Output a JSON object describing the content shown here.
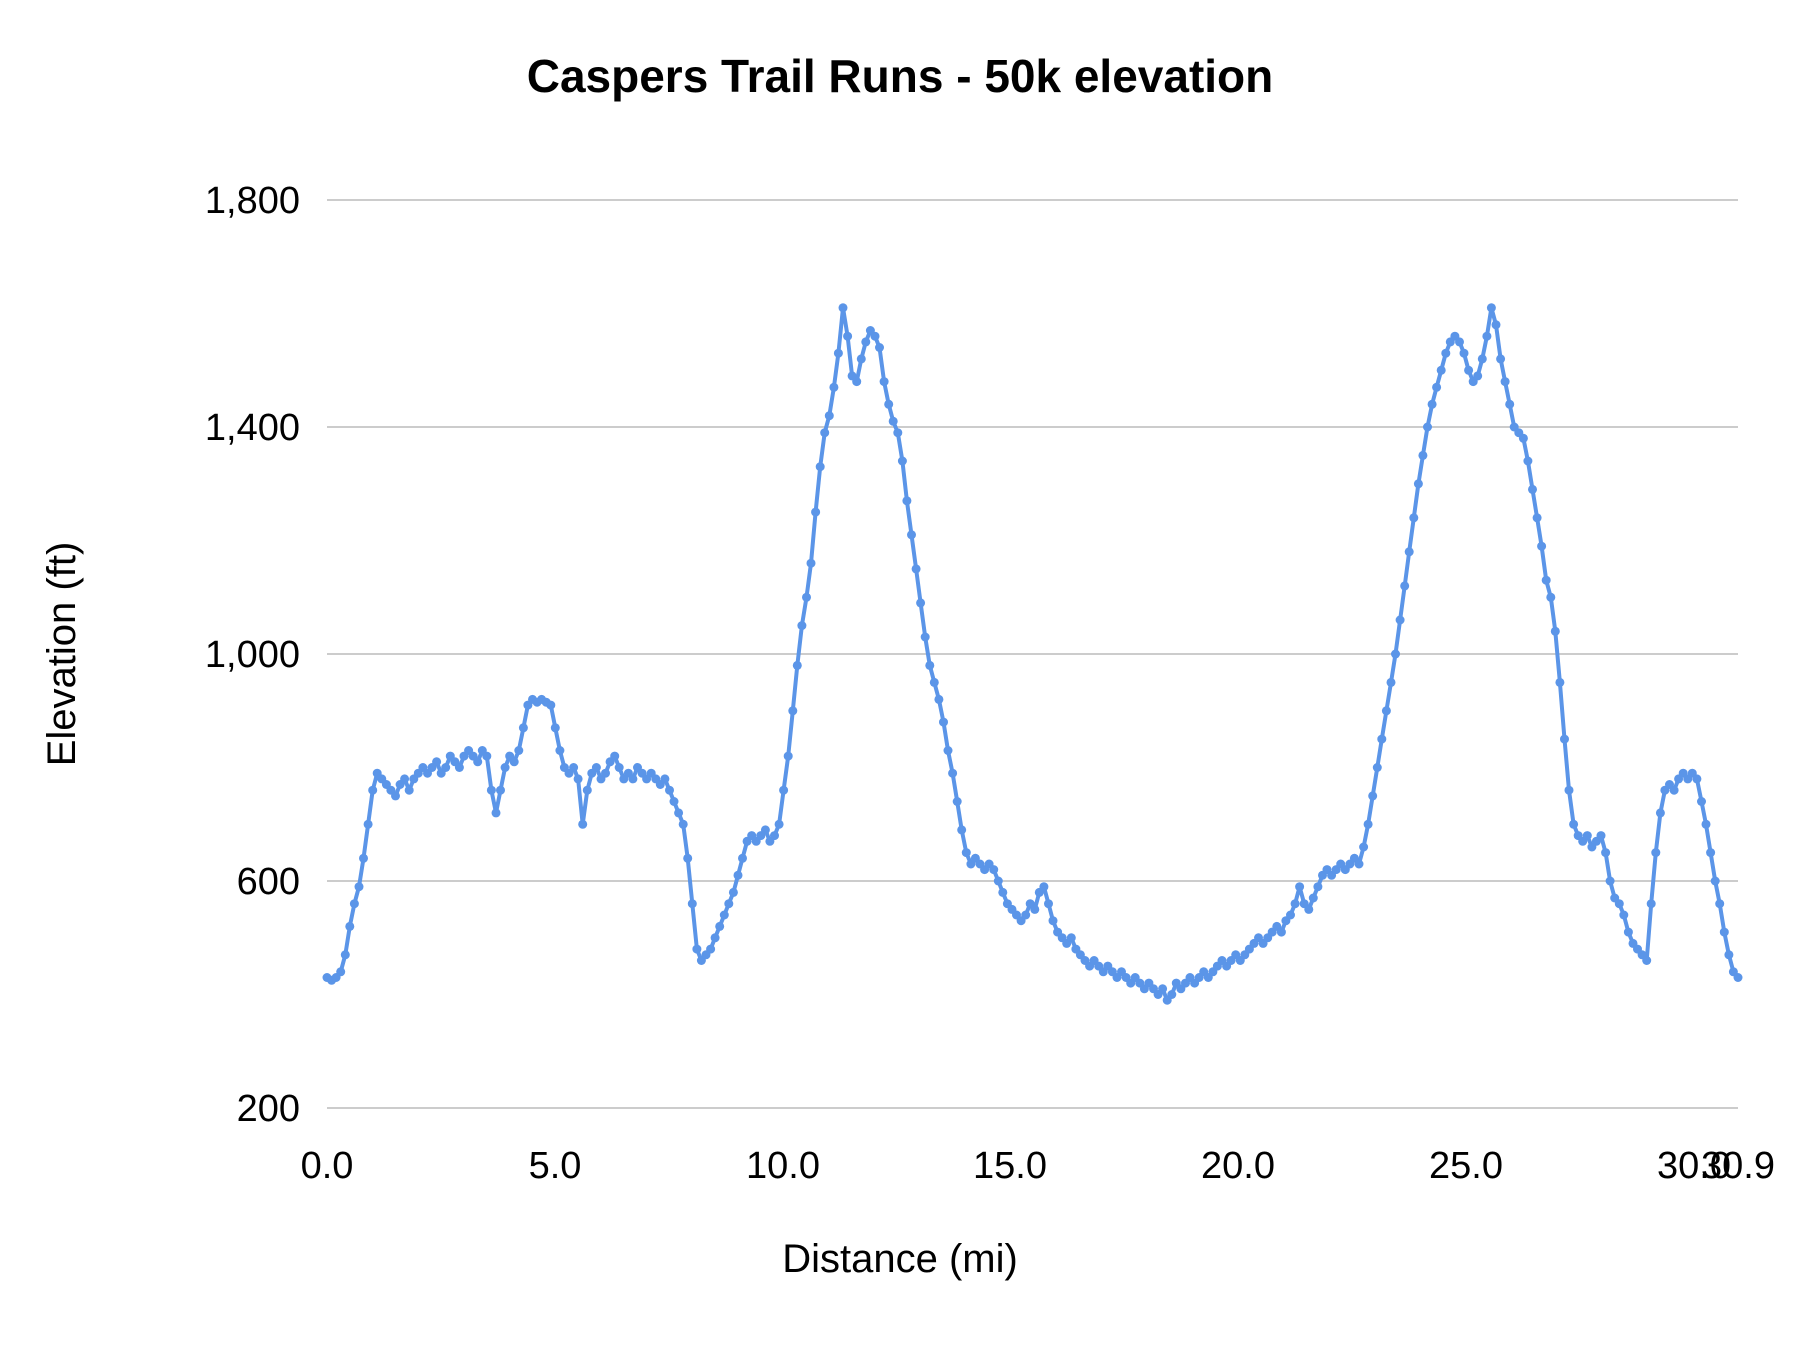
{
  "title": "Caspers Trail Runs  - 50k elevation",
  "style": {
    "series_color": "#5b95e8",
    "grid_color": "#cccccc",
    "text_color": "#000000",
    "background": "#ffffff"
  },
  "chart_data": {
    "type": "line",
    "title": "Caspers Trail Runs  - 50k elevation",
    "xlabel": "Distance (mi)",
    "ylabel": "Elevation (ft)",
    "xlim": [
      0.0,
      30.9
    ],
    "ylim": [
      200,
      1800
    ],
    "grid": "horizontal-only",
    "legend": "none",
    "x_ticks": [
      0.0,
      5.0,
      10.0,
      15.0,
      20.0,
      25.0,
      30.0,
      30.9
    ],
    "x_tick_labels": [
      "0.0",
      "5.0",
      "10.0",
      "15.0",
      "20.0",
      "25.0",
      "30.0",
      "30.9"
    ],
    "y_ticks": [
      200,
      600,
      1000,
      1400,
      1800
    ],
    "y_tick_labels": [
      "200",
      "600",
      "1,000",
      "1,400",
      "1,800"
    ],
    "series": [
      {
        "name": "50k elevation",
        "color": "#5b95e8",
        "marker": "circle",
        "x_start": 0.0,
        "x_step": 0.1,
        "elevations_ft": [
          430,
          425,
          430,
          440,
          470,
          520,
          560,
          590,
          640,
          700,
          760,
          790,
          780,
          770,
          760,
          750,
          770,
          780,
          760,
          780,
          790,
          800,
          790,
          800,
          810,
          790,
          800,
          820,
          810,
          800,
          820,
          830,
          820,
          810,
          830,
          820,
          760,
          720,
          760,
          800,
          820,
          810,
          830,
          870,
          910,
          920,
          915,
          920,
          915,
          910,
          870,
          830,
          800,
          790,
          800,
          780,
          700,
          760,
          790,
          800,
          780,
          790,
          810,
          820,
          800,
          780,
          790,
          780,
          800,
          790,
          780,
          790,
          780,
          770,
          780,
          760,
          740,
          720,
          700,
          640,
          560,
          480,
          460,
          470,
          480,
          500,
          520,
          540,
          560,
          580,
          610,
          640,
          670,
          680,
          670,
          680,
          690,
          670,
          680,
          700,
          760,
          820,
          900,
          980,
          1050,
          1100,
          1160,
          1250,
          1330,
          1390,
          1420,
          1470,
          1530,
          1610,
          1560,
          1490,
          1480,
          1520,
          1550,
          1570,
          1560,
          1540,
          1480,
          1440,
          1410,
          1390,
          1340,
          1270,
          1210,
          1150,
          1090,
          1030,
          980,
          950,
          920,
          880,
          830,
          790,
          740,
          690,
          650,
          630,
          640,
          630,
          620,
          630,
          620,
          600,
          580,
          560,
          550,
          540,
          530,
          540,
          560,
          550,
          580,
          590,
          560,
          530,
          510,
          500,
          490,
          500,
          480,
          470,
          460,
          450,
          460,
          450,
          440,
          450,
          440,
          430,
          440,
          430,
          420,
          430,
          420,
          410,
          420,
          410,
          400,
          410,
          390,
          400,
          420,
          410,
          420,
          430,
          420,
          430,
          440,
          430,
          440,
          450,
          460,
          450,
          460,
          470,
          460,
          470,
          480,
          490,
          500,
          490,
          500,
          510,
          520,
          510,
          530,
          540,
          560,
          590,
          560,
          550,
          570,
          590,
          610,
          620,
          610,
          620,
          630,
          620,
          630,
          640,
          630,
          660,
          700,
          750,
          800,
          850,
          900,
          950,
          1000,
          1060,
          1120,
          1180,
          1240,
          1300,
          1350,
          1400,
          1440,
          1470,
          1500,
          1530,
          1550,
          1560,
          1550,
          1530,
          1500,
          1480,
          1490,
          1520,
          1560,
          1610,
          1580,
          1520,
          1480,
          1440,
          1400,
          1390,
          1380,
          1340,
          1290,
          1240,
          1190,
          1130,
          1100,
          1040,
          950,
          850,
          760,
          700,
          680,
          670,
          680,
          660,
          670,
          680,
          650,
          600,
          570,
          560,
          540,
          510,
          490,
          480,
          470,
          460,
          560,
          650,
          720,
          760,
          770,
          760,
          780,
          790,
          780,
          790,
          780,
          740,
          700,
          650,
          600,
          560,
          510,
          470,
          440,
          430
        ]
      }
    ]
  }
}
